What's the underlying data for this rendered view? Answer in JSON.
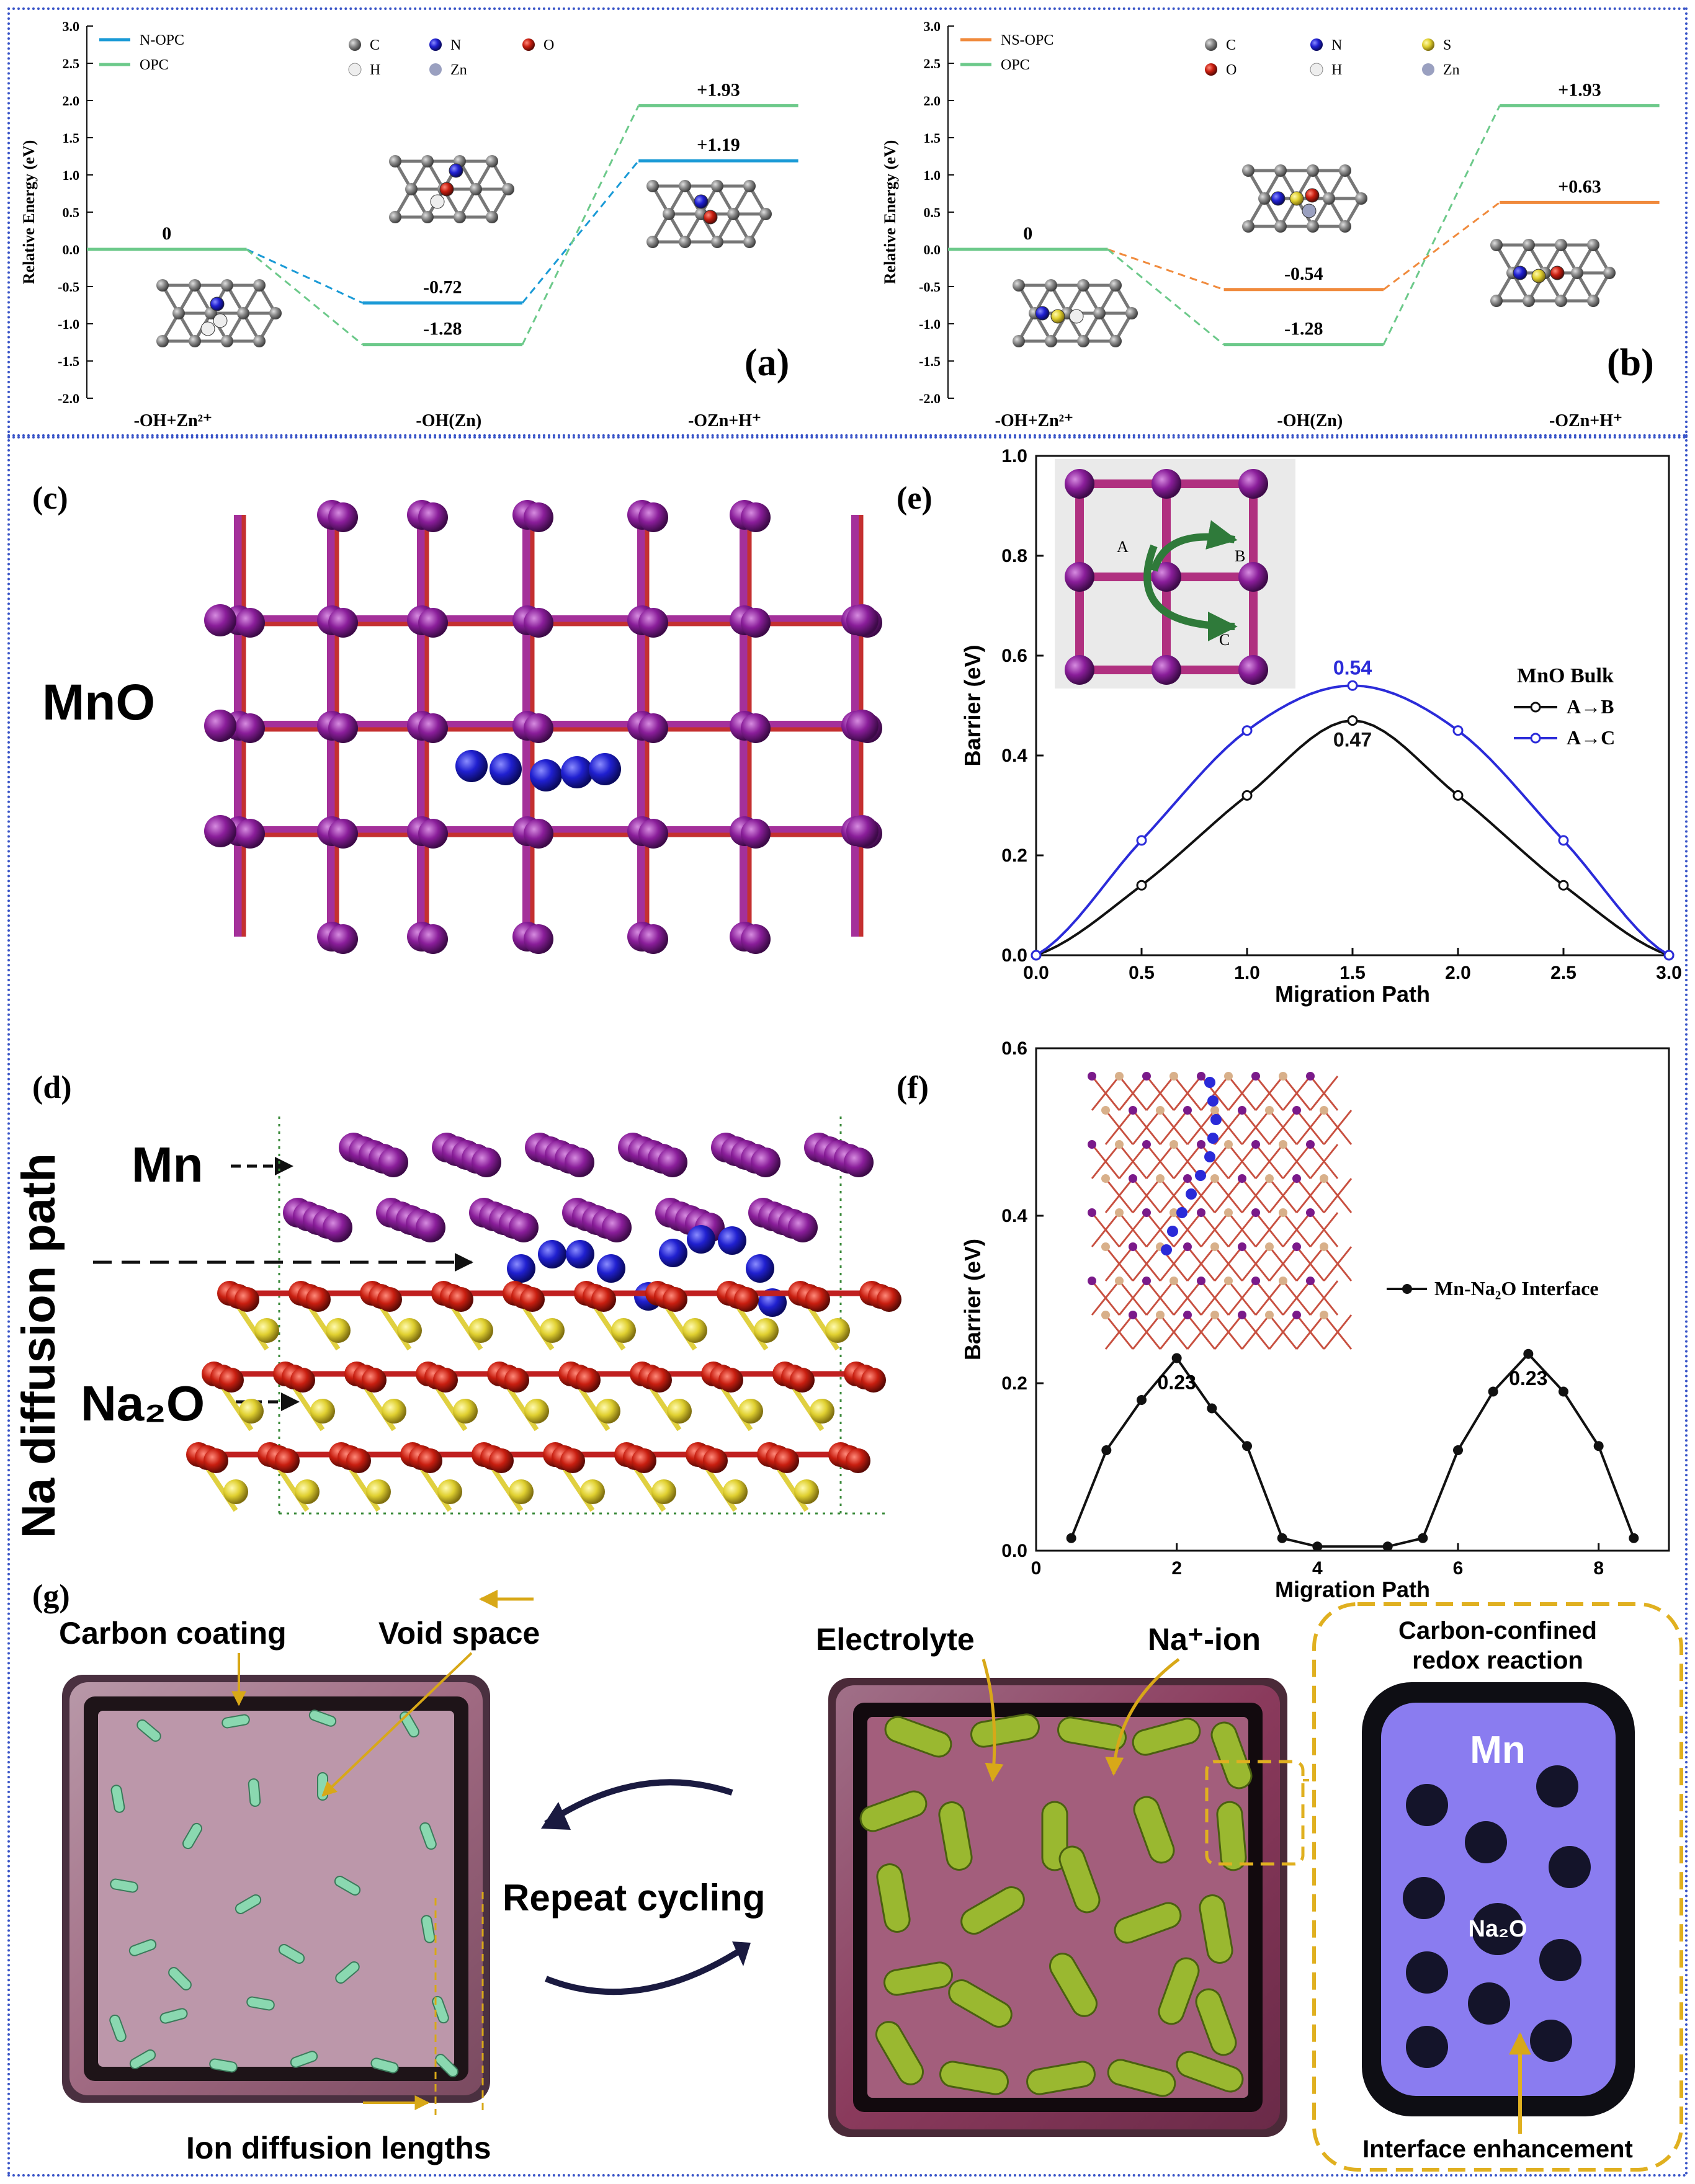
{
  "panel_a": {
    "label": "(a)",
    "molecule_legend": [
      "C",
      "N",
      "O",
      "H",
      "Zn"
    ],
    "atom_colors": {
      "C": "#8a8a8a",
      "N": "#1f3fd6",
      "O": "#e02020",
      "H": "#e8e8e8",
      "Zn": "#9aa0c0",
      "S": "#e8d21a"
    }
  },
  "panel_b": {
    "label": "(b)",
    "molecule_legend": [
      "C",
      "N",
      "S",
      "O",
      "H",
      "Zn"
    ]
  },
  "panel_c": {
    "label": "(c)",
    "material": "MnO"
  },
  "panel_d": {
    "label": "(d)",
    "side_label": "Na diffusion path",
    "mn_label": "Mn",
    "na2o_label": "Na₂O"
  },
  "panel_e": {
    "label": "(e)",
    "inset": {
      "a": "A",
      "b": "B",
      "c": "C"
    }
  },
  "panel_f": {
    "label": "(f)"
  },
  "panel_g": {
    "label": "(g)",
    "carbon_coating": "Carbon coating",
    "void_space": "Void space",
    "ion_diffusion": "Ion diffusion lengths",
    "repeat_cycling": "Repeat cycling",
    "electrolyte": "Electrolyte",
    "na_ion": "Na⁺-ion",
    "confined_line1": "Carbon-confined",
    "confined_line2": "redox reaction",
    "mn": "Mn",
    "na2o": "Na₂O",
    "interface": "Interface enhancement"
  },
  "chart_data": [
    {
      "id": "a",
      "type": "line",
      "ylabel": "Relative Energy (eV)",
      "ylim": [
        -2.0,
        3.0
      ],
      "yticks": [
        "3.0",
        "2.5",
        "2.0",
        "1.5",
        "1.0",
        "0.5",
        "0.0",
        "-0.5",
        "-1.0",
        "-1.5",
        "-2.0"
      ],
      "categories": [
        "-OH+Zn²⁺",
        "-OH(Zn)",
        "-OZn+H⁺"
      ],
      "legend": "top-left",
      "series": [
        {
          "name": "N-OPC",
          "color": "#1a9ad6",
          "values": [
            0,
            -0.72,
            1.19
          ],
          "labels": [
            "0",
            "-0.72",
            "+1.19"
          ]
        },
        {
          "name": "OPC",
          "color": "#6cc98a",
          "values": [
            0,
            -1.28,
            1.93
          ],
          "labels": [
            "",
            "-1.28",
            "+1.93"
          ]
        }
      ]
    },
    {
      "id": "b",
      "type": "line",
      "ylabel": "Relative Energy (eV)",
      "ylim": [
        -2.0,
        3.0
      ],
      "yticks": [
        "3.0",
        "2.5",
        "2.0",
        "1.5",
        "1.0",
        "0.5",
        "0.0",
        "-0.5",
        "-1.0",
        "-1.5",
        "-2.0"
      ],
      "categories": [
        "-OH+Zn²⁺",
        "-OH(Zn)",
        "-OZn+H⁺"
      ],
      "legend": "top-left",
      "series": [
        {
          "name": "NS-OPC",
          "color": "#f08a3c",
          "values": [
            0,
            -0.54,
            0.63
          ],
          "labels": [
            "0",
            "-0.54",
            "+0.63"
          ]
        },
        {
          "name": "OPC",
          "color": "#6cc98a",
          "values": [
            0,
            -1.28,
            1.93
          ],
          "labels": [
            "",
            "-1.28",
            "+1.93"
          ]
        }
      ]
    },
    {
      "id": "e",
      "type": "line",
      "title": "MnO Bulk",
      "xlabel": "Migration Path",
      "ylabel": "Barrier (eV)",
      "xlim": [
        0,
        3.0
      ],
      "ylim": [
        0,
        1.0
      ],
      "xticks": [
        "0.0",
        "0.5",
        "1.0",
        "1.5",
        "2.0",
        "2.5",
        "3.0"
      ],
      "yticks": [
        "0.0",
        "0.2",
        "0.4",
        "0.6",
        "0.8",
        "1.0"
      ],
      "legend": "right",
      "series": [
        {
          "name": "A→B",
          "color": "#111111",
          "x": [
            0,
            0.5,
            1.0,
            1.5,
            2.0,
            2.5,
            3.0
          ],
          "values": [
            0,
            0.14,
            0.32,
            0.47,
            0.32,
            0.14,
            0
          ],
          "peak_label": "0.47"
        },
        {
          "name": "A→C",
          "color": "#2b2bd9",
          "x": [
            0,
            0.5,
            1.0,
            1.5,
            2.0,
            2.5,
            3.0
          ],
          "values": [
            0,
            0.23,
            0.45,
            0.54,
            0.45,
            0.23,
            0
          ],
          "peak_label": "0.54"
        }
      ]
    },
    {
      "id": "f",
      "type": "line",
      "xlabel": "Migration Path",
      "ylabel": "Barrier (eV)",
      "xlim": [
        0,
        9
      ],
      "ylim": [
        0,
        0.6
      ],
      "xticks": [
        "0",
        "2",
        "4",
        "6",
        "8"
      ],
      "yticks": [
        "0.0",
        "0.2",
        "0.4",
        "0.6"
      ],
      "legend": "right",
      "series": [
        {
          "name": "Mn-Na₂O Interface",
          "color": "#111111",
          "x": [
            0.5,
            1,
            1.5,
            2,
            2.5,
            3,
            3.5,
            4,
            5,
            5.5,
            6,
            6.5,
            7,
            7.5,
            8,
            8.5
          ],
          "values": [
            0.015,
            0.12,
            0.18,
            0.23,
            0.17,
            0.125,
            0.015,
            0.005,
            0.005,
            0.015,
            0.12,
            0.19,
            0.235,
            0.19,
            0.125,
            0.015
          ],
          "peak_labels": [
            "0.23",
            "0.23"
          ]
        }
      ]
    }
  ]
}
